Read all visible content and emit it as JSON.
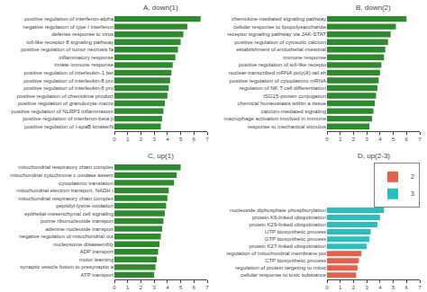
{
  "chart_data": [
    {
      "type": "bar",
      "orientation": "horizontal",
      "title": "A, down(1)",
      "color": "#2d8a2d",
      "categories": [
        "positive regulation of I-κpaB kinase/N",
        "positive regulation of interferon-beta p",
        "positive regulation of NLRP3 inflammasom",
        "positive regulation of granulocyte macro",
        "positive regulation of chemokine product",
        "positive regulation of interleukin-6 pro",
        "positive regulation of interleukin-8 pro",
        "positive regulation of interleukin-1 bet",
        "innate immune response",
        "inflammatory response",
        "positive regulation of tumor necrosis fa",
        "toll-like receptor 8 signaling pathway",
        "defense response to virus",
        "negative regulation of type I interferon",
        "positive regulation of interferon-alpha"
      ],
      "values": [
        3.5,
        3.6,
        3.7,
        3.8,
        4.0,
        4.1,
        4.2,
        4.3,
        4.4,
        4.6,
        4.8,
        5.0,
        5.2,
        5.5,
        6.5
      ],
      "xlim": [
        0,
        7
      ],
      "xticks": [
        0,
        1,
        2,
        3,
        4,
        5,
        6,
        7
      ],
      "grid": false
    },
    {
      "type": "bar",
      "orientation": "horizontal",
      "title": "B, down(2)",
      "color": "#2d8a2d",
      "categories": [
        "response to mechanical stimulus",
        "macrophage activation involved in immune",
        "calcium-mediated signaling",
        "chemical homeostasis within a tissue",
        "ISG15-protein conjugation",
        "regulation of NK T cell differentiation",
        "positive regulation of cytoplasmic mRNA",
        "nuclear-transcribed mRNA poly(A) tail sh",
        "positive regulation of toll-like recepto",
        "immune response",
        "establishment of endothelial intestinal",
        "positive regulation of cytosolic calcium",
        "receptor signaling pathway via JAK-STAT",
        "cellular response to lipopolysaccharide",
        "chemokine-mediated signaling pathway"
      ],
      "values": [
        3.2,
        3.4,
        3.5,
        3.6,
        3.7,
        3.8,
        3.9,
        4.0,
        4.1,
        4.3,
        4.4,
        4.6,
        4.8,
        5.2,
        6.0
      ],
      "xlim": [
        0,
        7
      ],
      "xticks": [
        0,
        1,
        2,
        3,
        4,
        5,
        6,
        7
      ],
      "grid": false
    },
    {
      "type": "bar",
      "orientation": "horizontal",
      "title": "C, up(1)",
      "color": "#2d8a2d",
      "categories": [
        "ATP transport",
        "synaptic vesicle fusion to presynaptic a",
        "motor learning",
        "ADP transport",
        "nucleosome disassembly",
        "negative regulation of mitochondrial out",
        "adenine nucleotide transport",
        "purine ribonucleotide transport",
        "epithelial-mesenchymal cell signaling",
        "peptidyl-lysine oxidation",
        "mitochondrial respiratory chain complex",
        "mitochondrial electron transport, NADH t",
        "cytoplasmic translation",
        "mitochondrial cytochrome c oxidase assem",
        "mitochondrial respiratory chain complex"
      ],
      "values": [
        3.0,
        3.1,
        3.2,
        3.3,
        3.4,
        3.5,
        3.6,
        3.7,
        3.8,
        3.9,
        4.0,
        4.1,
        4.5,
        4.7,
        5.0
      ],
      "xlim": [
        0,
        7
      ],
      "xticks": [
        0,
        1,
        2,
        3,
        4,
        5,
        6,
        7
      ],
      "grid": false
    },
    {
      "type": "bar",
      "orientation": "horizontal",
      "title": "D, up(2-3)",
      "categories": [
        "cellular response to toxic substance",
        "regulation of protein targeting to mitoc",
        "CTP biosynthetic process",
        "regulation of mitochondrial membrane pot",
        "protein K27-linked ubiquitination",
        "GTP biosynthetic process",
        "UTP biosynthetic process",
        "protein K29-linked ubiquitination",
        "protein K6-linked ubiquitination",
        "nucleoside diphosphate phosphorylation"
      ],
      "series": [
        {
          "name": "2",
          "color": "#e8604c",
          "values": [
            2.2,
            2.3,
            2.4,
            2.6,
            null,
            null,
            null,
            null,
            null,
            null
          ]
        },
        {
          "name": "3",
          "color": "#2abfbf",
          "values": [
            null,
            null,
            null,
            null,
            3.0,
            3.2,
            3.3,
            3.8,
            4.0,
            4.3
          ]
        }
      ],
      "xlim": [
        0,
        7
      ],
      "xticks": [
        0,
        1,
        2,
        3,
        4,
        5,
        6,
        7
      ],
      "legend": "upper right",
      "grid": false
    }
  ]
}
